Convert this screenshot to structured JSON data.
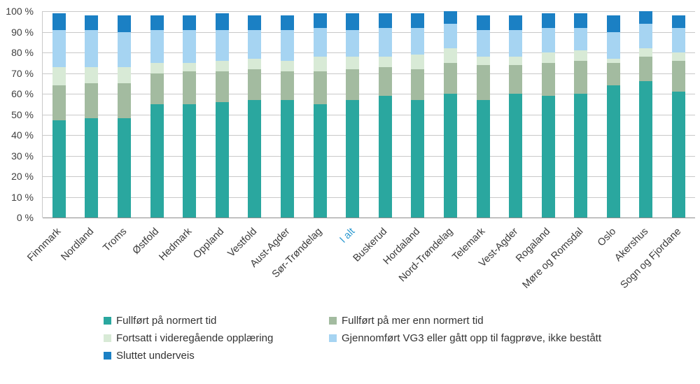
{
  "chart_data": {
    "type": "bar",
    "variant": "stacked-100",
    "categories": [
      "Finnmark",
      "Nordland",
      "Troms",
      "Østfold",
      "Hedmark",
      "Oppland",
      "Vestfold",
      "Aust-Agder",
      "Sør-Trøndelag",
      "I alt",
      "Buskerud",
      "Hordaland",
      "Nord-Trøndelag",
      "Telemark",
      "Vest-Agder",
      "Rogaland",
      "Møre og Romsdal",
      "Oslo",
      "Akershus",
      "Sogn og Fjordane"
    ],
    "highlighted_category": "I alt",
    "series": [
      {
        "name": "Fullført på normert tid",
        "color": "#2AA79F",
        "values": [
          47,
          48,
          48,
          55,
          55,
          56,
          57,
          57,
          55,
          57,
          59,
          57,
          60,
          57,
          60,
          59,
          60,
          64,
          66,
          61
        ]
      },
      {
        "name": "Fullført på mer enn normert tid",
        "color": "#A3BBA0",
        "values": [
          17,
          17,
          17,
          15,
          16,
          15,
          15,
          14,
          16,
          15,
          14,
          15,
          15,
          17,
          14,
          16,
          16,
          11,
          12,
          15
        ]
      },
      {
        "name": "Fortsatt i videregående opplæring",
        "color": "#D8EAD6",
        "values": [
          9,
          8,
          8,
          5,
          4,
          5,
          5,
          5,
          7,
          6,
          5,
          7,
          7,
          4,
          4,
          5,
          5,
          2,
          4,
          4
        ]
      },
      {
        "name": "Gjennomført VG3 eller gått opp til fagprøve, ikke bestått",
        "color": "#A6D4F2",
        "values": [
          18,
          18,
          17,
          16,
          16,
          15,
          14,
          15,
          14,
          13,
          14,
          13,
          12,
          13,
          13,
          12,
          11,
          13,
          12,
          12
        ]
      },
      {
        "name": "Sluttet underveis",
        "color": "#1B80C4",
        "values": [
          8,
          7,
          8,
          7,
          7,
          8,
          7,
          7,
          7,
          8,
          7,
          7,
          6,
          7,
          7,
          7,
          7,
          8,
          6,
          6
        ]
      }
    ],
    "y_ticks": [
      "100 %",
      "90 %",
      "80 %",
      "70 %",
      "60 %",
      "50 %",
      "40 %",
      "30 %",
      "20 %",
      "10 %",
      "0 %"
    ],
    "ylim": [
      0,
      100
    ],
    "grid": true,
    "legend_position": "bottom"
  },
  "colors": {
    "highlight_label": "#2E9AD0"
  }
}
